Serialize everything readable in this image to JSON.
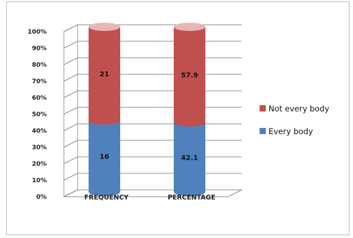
{
  "chart_data": {
    "type": "bar",
    "stacked": true,
    "percent_stacked": true,
    "style": "3d-cylinder",
    "categories": [
      "FREQUENCY",
      "PERCENTAGE"
    ],
    "series": [
      {
        "name": "Every body",
        "values": [
          16,
          42.1
        ],
        "display": [
          "16",
          "42.1"
        ],
        "color": "#4f81bd"
      },
      {
        "name": "Not every body",
        "values": [
          21,
          57.9
        ],
        "display": [
          "21",
          "57.9"
        ],
        "color": "#c0504d"
      }
    ],
    "y_ticks": [
      "0%",
      "10%",
      "20%",
      "30%",
      "40%",
      "50%",
      "60%",
      "70%",
      "80%",
      "90%",
      "100%"
    ],
    "ylim": [
      0,
      100
    ],
    "grid": true,
    "legend_position": "right"
  }
}
